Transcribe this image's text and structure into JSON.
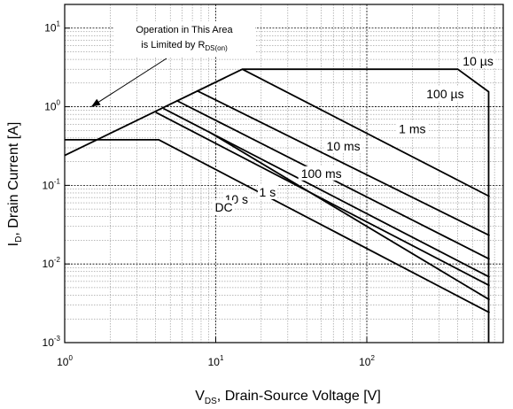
{
  "chart_data": {
    "type": "line",
    "x_scale": "log",
    "y_scale": "log",
    "xlim": [
      1,
      800
    ],
    "ylim": [
      0.001,
      20
    ],
    "grid": true,
    "xlabel": {
      "main": "V",
      "sub": "DS",
      "rest": ", Drain-Source Voltage [V]"
    },
    "ylabel": {
      "main": "I",
      "sub": "D",
      "rest": ", Drain Current [A]"
    },
    "x_ticks": [
      {
        "value": 1,
        "base": "10",
        "exp": "0"
      },
      {
        "value": 10,
        "base": "10",
        "exp": "1"
      },
      {
        "value": 100,
        "base": "10",
        "exp": "2"
      }
    ],
    "y_ticks": [
      {
        "value": 0.001,
        "base": "10",
        "exp": "-3"
      },
      {
        "value": 0.01,
        "base": "10",
        "exp": "-2"
      },
      {
        "value": 0.1,
        "base": "10",
        "exp": "-1"
      },
      {
        "value": 1,
        "base": "10",
        "exp": "0"
      },
      {
        "value": 10,
        "base": "10",
        "exp": "1"
      }
    ],
    "annotation": {
      "line1": "Operation in This Area",
      "line2_main": "is Limited by R",
      "line2_sub": "DS(on)",
      "arrow_target": {
        "x": 1.5,
        "y": 1.0
      }
    },
    "series": [
      {
        "label": "10 µs",
        "label_at": {
          "x": 545,
          "y": 3.6
        },
        "points": [
          [
            1,
            0.24
          ],
          [
            15,
            3.0
          ],
          [
            400,
            3.0
          ],
          [
            640,
            1.55
          ],
          [
            640,
            0.001
          ]
        ]
      },
      {
        "label": "100 µs",
        "label_at": {
          "x": 330,
          "y": 1.38
        },
        "points": [
          [
            15,
            3.0
          ],
          [
            650,
            0.072
          ]
        ]
      },
      {
        "label": "1 ms",
        "label_at": {
          "x": 200,
          "y": 0.5
        },
        "points": [
          [
            7.5,
            1.6
          ],
          [
            650,
            0.023
          ]
        ]
      },
      {
        "label": "10 ms",
        "label_at": {
          "x": 70,
          "y": 0.3
        },
        "points": [
          [
            5.5,
            1.2
          ],
          [
            650,
            0.0115
          ]
        ]
      },
      {
        "label": "100 ms",
        "label_at": {
          "x": 50,
          "y": 0.135
        },
        "points": [
          [
            4.5,
            0.95
          ],
          [
            650,
            0.0068
          ]
        ]
      },
      {
        "label": "1 s",
        "label_at": {
          "x": 22,
          "y": 0.078
        },
        "points": [
          [
            4.0,
            0.85
          ],
          [
            650,
            0.0053
          ]
        ]
      },
      {
        "label": "10 s",
        "label_at": {
          "x": 13.7,
          "y": 0.063
        },
        "points": [
          [
            9.0,
            0.48
          ],
          [
            650,
            0.0035
          ]
        ]
      },
      {
        "label": "DC",
        "label_at": {
          "x": 11.3,
          "y": 0.05
        },
        "points": [
          [
            1,
            0.38
          ],
          [
            4.2,
            0.38
          ],
          [
            650,
            0.0024
          ]
        ]
      }
    ]
  }
}
